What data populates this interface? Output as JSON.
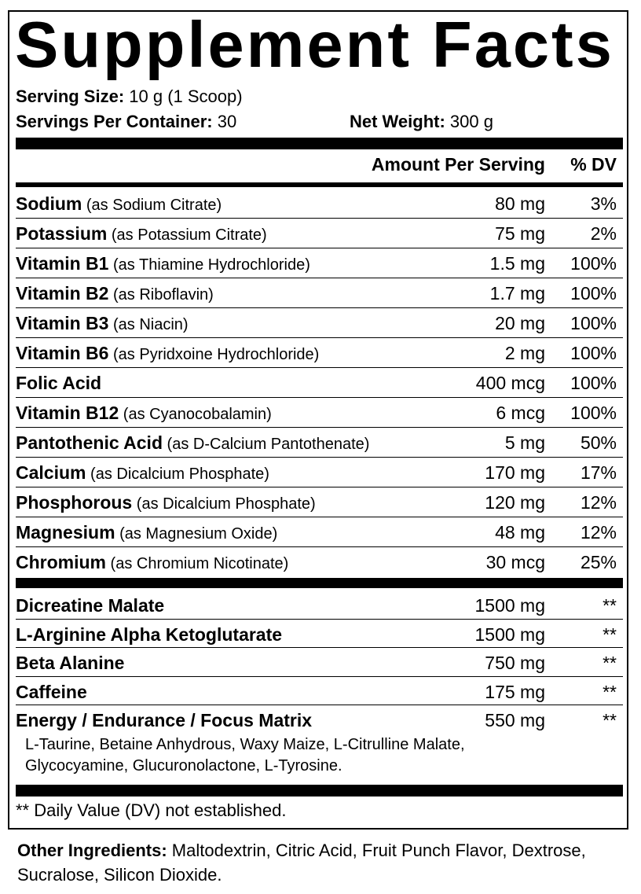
{
  "title": "Supplement Facts",
  "serving": {
    "size_label": "Serving Size:",
    "size_value": " 10 g (1 Scoop)",
    "per_container_label": "Servings Per Container:",
    "per_container_value": " 30",
    "net_weight_label": "Net Weight:",
    "net_weight_value": " 300 g"
  },
  "header": {
    "amount": "Amount Per Serving",
    "dv": "% DV"
  },
  "vitamins": [
    {
      "name": "Sodium",
      "source": " (as Sodium Citrate)",
      "amount": "80 mg",
      "dv": "3%"
    },
    {
      "name": "Potassium",
      "source": " (as Potassium Citrate)",
      "amount": "75 mg",
      "dv": "2%"
    },
    {
      "name": "Vitamin B1",
      "source": " (as Thiamine Hydrochloride)",
      "amount": "1.5 mg",
      "dv": "100%"
    },
    {
      "name": "Vitamin B2",
      "source": " (as Riboflavin)",
      "amount": "1.7 mg",
      "dv": "100%"
    },
    {
      "name": "Vitamin B3",
      "source": " (as Niacin)",
      "amount": "20 mg",
      "dv": "100%"
    },
    {
      "name": "Vitamin B6",
      "source": " (as Pyridxoine Hydrochloride)",
      "amount": "2 mg",
      "dv": "100%"
    },
    {
      "name": "Folic Acid",
      "source": "",
      "amount": "400 mcg",
      "dv": "100%"
    },
    {
      "name": "Vitamin B12",
      "source": " (as Cyanocobalamin)",
      "amount": "6 mcg",
      "dv": "100%"
    },
    {
      "name": "Pantothenic Acid",
      "source": " (as D-Calcium Pantothenate)",
      "amount": "5 mg",
      "dv": "50%"
    },
    {
      "name": "Calcium",
      "source": " (as Dicalcium Phosphate)",
      "amount": "170 mg",
      "dv": "17%"
    },
    {
      "name": "Phosphorous",
      "source": " (as Dicalcium Phosphate)",
      "amount": "120 mg",
      "dv": "12%"
    },
    {
      "name": "Magnesium",
      "source": " (as Magnesium Oxide)",
      "amount": "48 mg",
      "dv": "12%"
    },
    {
      "name": "Chromium",
      "source": " (as Chromium Nicotinate)",
      "amount": "30 mcg",
      "dv": "25%"
    }
  ],
  "blend": [
    {
      "name": "Dicreatine Malate",
      "amount": "1500 mg",
      "dv": "**"
    },
    {
      "name": "L-Arginine Alpha Ketoglutarate",
      "amount": "1500 mg",
      "dv": "**"
    },
    {
      "name": "Beta Alanine",
      "amount": "750 mg",
      "dv": "**"
    },
    {
      "name": "Caffeine",
      "amount": "175 mg",
      "dv": "**"
    },
    {
      "name": "Energy / Endurance / Focus Matrix",
      "amount": "550 mg",
      "dv": "**"
    }
  ],
  "matrix_ingredients": [
    "L-Taurine, Betaine Anhydrous, Waxy Maize, L-Citrulline Malate,",
    "Glycocyamine, Glucuronolactone, L-Tyrosine."
  ],
  "footnote": "** Daily Value (DV) not established.",
  "other": {
    "label": "Other Ingredients:",
    "value": " Maltodextrin, Citric Acid, Fruit Punch Flavor, Dextrose, Sucralose, Silicon Dioxide."
  }
}
